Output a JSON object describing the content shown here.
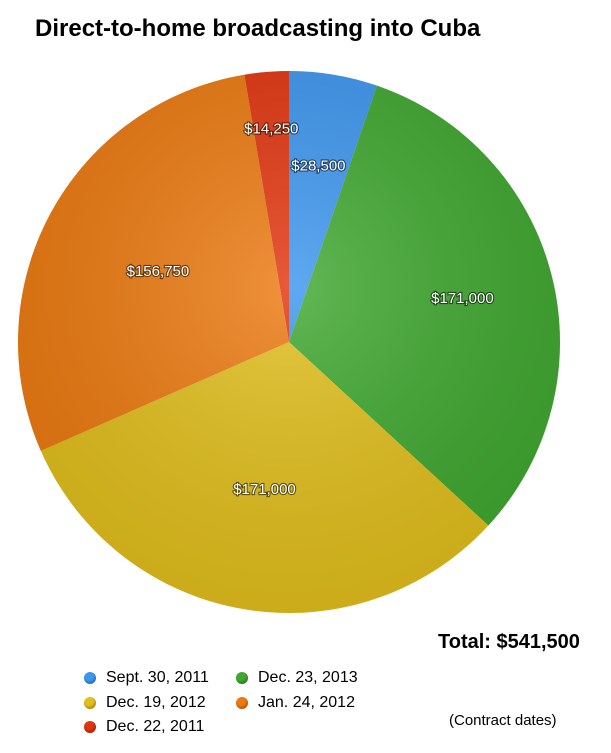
{
  "title": "Direct-to-home broadcasting into Cuba",
  "total_label": "Total: $541,500",
  "note": "(Contract dates)",
  "chart_data": {
    "type": "pie",
    "title": "Direct-to-home broadcasting into Cuba",
    "slices": [
      {
        "name": "Sept. 30, 2011",
        "value": 28500,
        "label": "$28,500",
        "color": "#3d96ef"
      },
      {
        "name": "Dec. 23, 2013",
        "value": 171000,
        "label": "$171,000",
        "color": "#3fa82f"
      },
      {
        "name": "Dec. 19, 2012",
        "value": 171000,
        "label": "$171,000",
        "color": "#e2bf1c"
      },
      {
        "name": "Jan. 24, 2012",
        "value": 156750,
        "label": "$156,750",
        "color": "#ec7a10"
      },
      {
        "name": "Dec. 22, 2011",
        "value": 14250,
        "label": "$14,250",
        "color": "#e2350e"
      }
    ],
    "legend": [
      {
        "name": "Sept. 30, 2011",
        "color": "#3d96ef"
      },
      {
        "name": "Dec. 23, 2013",
        "color": "#3fa82f"
      },
      {
        "name": "Dec. 19, 2012",
        "color": "#e2bf1c"
      },
      {
        "name": "Jan. 24, 2012",
        "color": "#ec7a10"
      },
      {
        "name": "Dec. 22, 2011",
        "color": "#e2350e"
      }
    ],
    "legend_position": "bottom-left"
  }
}
